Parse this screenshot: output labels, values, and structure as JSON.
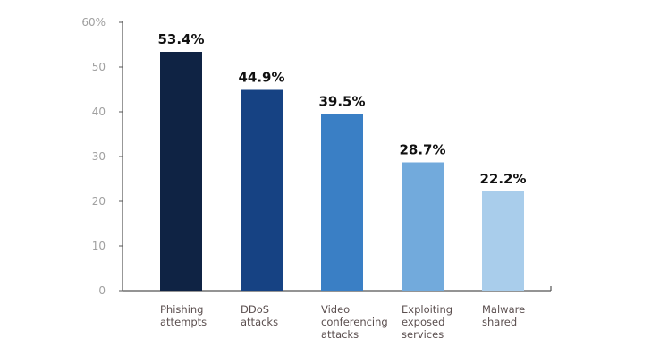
{
  "chart_data": {
    "type": "bar",
    "title": "",
    "xlabel": "",
    "ylabel": "",
    "ylim": [
      0,
      60
    ],
    "yticks": [
      0,
      10,
      20,
      30,
      40,
      50,
      60
    ],
    "ytick_labels": [
      "0",
      "10",
      "20",
      "30",
      "40",
      "50",
      "60%"
    ],
    "grid": false,
    "categories": [
      [
        "Phishing",
        "attempts"
      ],
      [
        "DDoS",
        "attacks"
      ],
      [
        "Video",
        "conferencing",
        "attacks"
      ],
      [
        "Exploiting",
        "exposed",
        "services"
      ],
      [
        "Malware",
        "shared"
      ]
    ],
    "values": [
      53.4,
      44.9,
      39.5,
      28.7,
      22.2
    ],
    "value_labels": [
      "53.4%",
      "44.9%",
      "39.5%",
      "28.7%",
      "22.2%"
    ],
    "colors": [
      "#0f2344",
      "#164283",
      "#3a7fc5",
      "#72aadc",
      "#a9cdeb"
    ]
  }
}
